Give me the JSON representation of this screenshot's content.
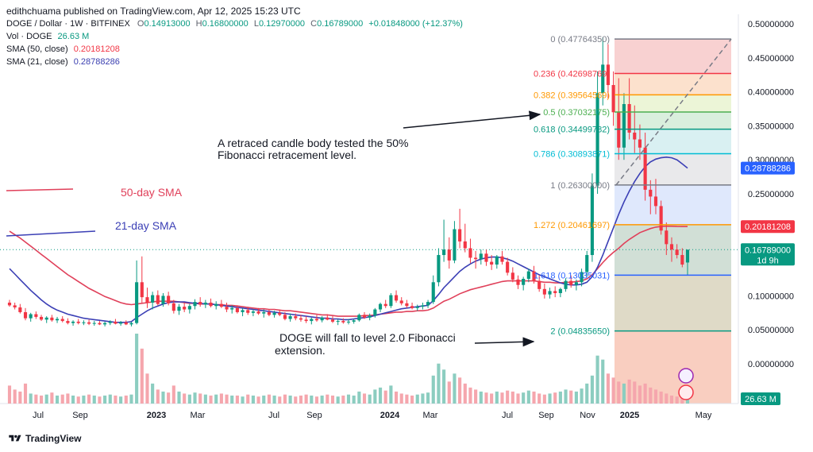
{
  "header": {
    "published": "edithchuama published on TradingView.com, Apr 12, 2025 15:23 UTC",
    "symbol": "DOGE / Dollar · 1W · BITFINEX",
    "ohlc": {
      "o_label": "O",
      "o": "0.14913000",
      "h_label": "H",
      "h": "0.16800000",
      "l_label": "L",
      "l": "0.12970000",
      "c_label": "C",
      "c": "0.16789000",
      "change": "+0.01848000 (+12.37%)"
    },
    "vol_label": "Vol · DOGE",
    "vol": "26.63 M",
    "sma50_label": "SMA (50, close)",
    "sma50": "0.20181208",
    "sma21_label": "SMA (21, close)",
    "sma21": "0.28788286"
  },
  "footer": {
    "brand": "TradingView"
  },
  "chart_data": {
    "type": "candlestick",
    "x_ticks": [
      "Jul",
      "Sep",
      "2023",
      "Mar",
      "Jul",
      "Sep",
      "2024",
      "Mar",
      "Jul",
      "Sep",
      "Nov",
      "2025",
      "May"
    ],
    "y_ticks": [
      "0.50000000",
      "0.45000000",
      "0.40000000",
      "0.35000000",
      "0.30000000",
      "0.25000000",
      "0.10000000",
      "0.05000000",
      "0.00000000"
    ],
    "ylim": [
      -0.05,
      0.5
    ],
    "price_labels": [
      {
        "value": 0.28788286,
        "text": "0.28788286",
        "color": "#2962ff"
      },
      {
        "value": 0.20181208,
        "text": "0.20181208",
        "color": "#f23645"
      },
      {
        "value": 0.16789,
        "text": "0.16789000",
        "sub": "1d 9h",
        "color": "#089981"
      }
    ],
    "volume_label": {
      "text": "26.63 M",
      "color": "#089981"
    },
    "fibonacci": [
      {
        "ratio": "0",
        "price": "0.47764350",
        "value": 0.4776435,
        "color": "#787b86",
        "fill": "#f7c9c9"
      },
      {
        "ratio": "0.236",
        "price": "0.42698769",
        "value": 0.42698769,
        "color": "#f23645",
        "fill": "#fbdcc4"
      },
      {
        "ratio": "0.382",
        "price": "0.39564569",
        "value": 0.39564569,
        "color": "#ff9800",
        "fill": "#e9f3d0"
      },
      {
        "ratio": "0.5",
        "price": "0.37032175",
        "value": 0.37032175,
        "color": "#4caf50",
        "fill": "#d4ecd7"
      },
      {
        "ratio": "0.618",
        "price": "0.34499782",
        "value": 0.34499782,
        "color": "#089981",
        "fill": "#d2edf0"
      },
      {
        "ratio": "0.786",
        "price": "0.30893871",
        "value": 0.30893871,
        "color": "#00bcd4",
        "fill": "#e5e5e7"
      },
      {
        "ratio": "1",
        "price": "0.26300000",
        "value": 0.263,
        "color": "#787b86",
        "fill": "#d9e4fb"
      },
      {
        "ratio": "1.272",
        "price": "0.20461697",
        "value": 0.20461697,
        "color": "#ff9800",
        "fill": "#c9d9cf"
      },
      {
        "ratio": "1.618",
        "price": "0.13035031",
        "value": 0.13035031,
        "color": "#2962ff",
        "fill": "#d9d3bd"
      },
      {
        "ratio": "2",
        "price": "0.04835650",
        "value": 0.0483565,
        "color": "#089981",
        "fill": "#f8c6b5"
      }
    ],
    "annotations": {
      "top_text_line1": "A retraced candle body tested the 50%",
      "top_text_line2": "Fibonacci retracement level.",
      "bottom_text_line1": "DOGE  will fall to level 2.0 Fibonacci",
      "bottom_text_line2": "extension.",
      "sma50_label": "50-day SMA",
      "sma21_label": "21-day SMA"
    },
    "series_colors": {
      "up": "#089981",
      "down": "#f23645",
      "sma50": "#e0405a",
      "sma21": "#3b3fb5"
    },
    "candles": [
      [
        0.09,
        0.094,
        0.084,
        0.086
      ],
      [
        0.086,
        0.09,
        0.08,
        0.083
      ],
      [
        0.083,
        0.088,
        0.074,
        0.076
      ],
      [
        0.076,
        0.082,
        0.064,
        0.067
      ],
      [
        0.067,
        0.075,
        0.062,
        0.073
      ],
      [
        0.073,
        0.077,
        0.066,
        0.069
      ],
      [
        0.069,
        0.072,
        0.063,
        0.065
      ],
      [
        0.065,
        0.07,
        0.06,
        0.068
      ],
      [
        0.068,
        0.072,
        0.062,
        0.064
      ],
      [
        0.064,
        0.069,
        0.06,
        0.066
      ],
      [
        0.066,
        0.07,
        0.061,
        0.063
      ],
      [
        0.063,
        0.067,
        0.058,
        0.06
      ],
      [
        0.06,
        0.064,
        0.056,
        0.062
      ],
      [
        0.062,
        0.066,
        0.058,
        0.06
      ],
      [
        0.06,
        0.064,
        0.057,
        0.061
      ],
      [
        0.061,
        0.065,
        0.057,
        0.059
      ],
      [
        0.059,
        0.063,
        0.056,
        0.06
      ],
      [
        0.06,
        0.063,
        0.057,
        0.058
      ],
      [
        0.058,
        0.062,
        0.055,
        0.06
      ],
      [
        0.06,
        0.064,
        0.057,
        0.062
      ],
      [
        0.062,
        0.066,
        0.058,
        0.059
      ],
      [
        0.059,
        0.063,
        0.056,
        0.061
      ],
      [
        0.061,
        0.064,
        0.057,
        0.058
      ],
      [
        0.058,
        0.062,
        0.055,
        0.06
      ],
      [
        0.06,
        0.152,
        0.058,
        0.12
      ],
      [
        0.12,
        0.158,
        0.09,
        0.098
      ],
      [
        0.098,
        0.112,
        0.082,
        0.09
      ],
      [
        0.09,
        0.106,
        0.08,
        0.101
      ],
      [
        0.101,
        0.108,
        0.086,
        0.088
      ],
      [
        0.088,
        0.104,
        0.084,
        0.1
      ],
      [
        0.1,
        0.106,
        0.086,
        0.089
      ],
      [
        0.089,
        0.094,
        0.074,
        0.078
      ],
      [
        0.078,
        0.088,
        0.072,
        0.084
      ],
      [
        0.084,
        0.09,
        0.076,
        0.08
      ],
      [
        0.08,
        0.088,
        0.074,
        0.085
      ],
      [
        0.085,
        0.095,
        0.08,
        0.091
      ],
      [
        0.091,
        0.098,
        0.084,
        0.087
      ],
      [
        0.087,
        0.094,
        0.082,
        0.09
      ],
      [
        0.09,
        0.096,
        0.083,
        0.085
      ],
      [
        0.085,
        0.092,
        0.08,
        0.088
      ],
      [
        0.088,
        0.094,
        0.082,
        0.084
      ],
      [
        0.084,
        0.09,
        0.076,
        0.08
      ],
      [
        0.08,
        0.086,
        0.074,
        0.082
      ],
      [
        0.082,
        0.086,
        0.074,
        0.076
      ],
      [
        0.076,
        0.082,
        0.07,
        0.079
      ],
      [
        0.079,
        0.084,
        0.072,
        0.075
      ],
      [
        0.075,
        0.08,
        0.07,
        0.077
      ],
      [
        0.077,
        0.082,
        0.072,
        0.074
      ],
      [
        0.074,
        0.08,
        0.068,
        0.076
      ],
      [
        0.076,
        0.08,
        0.07,
        0.072
      ],
      [
        0.072,
        0.078,
        0.068,
        0.075
      ],
      [
        0.075,
        0.08,
        0.07,
        0.072
      ],
      [
        0.072,
        0.076,
        0.064,
        0.066
      ],
      [
        0.066,
        0.074,
        0.062,
        0.07
      ],
      [
        0.07,
        0.074,
        0.064,
        0.067
      ],
      [
        0.067,
        0.072,
        0.062,
        0.065
      ],
      [
        0.065,
        0.07,
        0.06,
        0.063
      ],
      [
        0.063,
        0.068,
        0.058,
        0.066
      ],
      [
        0.066,
        0.072,
        0.062,
        0.064
      ],
      [
        0.064,
        0.07,
        0.061,
        0.068
      ],
      [
        0.068,
        0.073,
        0.064,
        0.065
      ],
      [
        0.065,
        0.07,
        0.06,
        0.062
      ],
      [
        0.062,
        0.066,
        0.057,
        0.063
      ],
      [
        0.063,
        0.067,
        0.059,
        0.061
      ],
      [
        0.061,
        0.066,
        0.058,
        0.062
      ],
      [
        0.062,
        0.066,
        0.059,
        0.064
      ],
      [
        0.064,
        0.074,
        0.062,
        0.072
      ],
      [
        0.072,
        0.076,
        0.066,
        0.068
      ],
      [
        0.068,
        0.074,
        0.064,
        0.071
      ],
      [
        0.071,
        0.082,
        0.068,
        0.08
      ],
      [
        0.08,
        0.09,
        0.076,
        0.088
      ],
      [
        0.088,
        0.094,
        0.082,
        0.085
      ],
      [
        0.085,
        0.104,
        0.082,
        0.101
      ],
      [
        0.101,
        0.108,
        0.09,
        0.093
      ],
      [
        0.093,
        0.098,
        0.086,
        0.089
      ],
      [
        0.089,
        0.094,
        0.082,
        0.085
      ],
      [
        0.085,
        0.09,
        0.08,
        0.082
      ],
      [
        0.082,
        0.087,
        0.078,
        0.084
      ],
      [
        0.084,
        0.09,
        0.08,
        0.086
      ],
      [
        0.086,
        0.094,
        0.082,
        0.091
      ],
      [
        0.091,
        0.13,
        0.088,
        0.12
      ],
      [
        0.12,
        0.17,
        0.114,
        0.16
      ],
      [
        0.16,
        0.212,
        0.15,
        0.168
      ],
      [
        0.168,
        0.186,
        0.14,
        0.152
      ],
      [
        0.152,
        0.21,
        0.148,
        0.198
      ],
      [
        0.198,
        0.228,
        0.17,
        0.18
      ],
      [
        0.18,
        0.206,
        0.164,
        0.17
      ],
      [
        0.17,
        0.184,
        0.148,
        0.156
      ],
      [
        0.156,
        0.166,
        0.14,
        0.154
      ],
      [
        0.154,
        0.168,
        0.146,
        0.162
      ],
      [
        0.162,
        0.168,
        0.144,
        0.15
      ],
      [
        0.15,
        0.16,
        0.138,
        0.146
      ],
      [
        0.146,
        0.16,
        0.14,
        0.158
      ],
      [
        0.158,
        0.166,
        0.146,
        0.15
      ],
      [
        0.15,
        0.156,
        0.13,
        0.134
      ],
      [
        0.134,
        0.142,
        0.12,
        0.124
      ],
      [
        0.124,
        0.13,
        0.11,
        0.116
      ],
      [
        0.116,
        0.128,
        0.108,
        0.125
      ],
      [
        0.125,
        0.14,
        0.12,
        0.136
      ],
      [
        0.136,
        0.144,
        0.118,
        0.122
      ],
      [
        0.122,
        0.13,
        0.106,
        0.11
      ],
      [
        0.11,
        0.118,
        0.096,
        0.102
      ],
      [
        0.102,
        0.112,
        0.096,
        0.107
      ],
      [
        0.107,
        0.114,
        0.098,
        0.104
      ],
      [
        0.104,
        0.112,
        0.098,
        0.11
      ],
      [
        0.11,
        0.126,
        0.106,
        0.122
      ],
      [
        0.122,
        0.13,
        0.112,
        0.116
      ],
      [
        0.116,
        0.124,
        0.108,
        0.12
      ],
      [
        0.12,
        0.14,
        0.114,
        0.135
      ],
      [
        0.135,
        0.166,
        0.128,
        0.16
      ],
      [
        0.16,
        0.28,
        0.15,
        0.262
      ],
      [
        0.262,
        0.43,
        0.25,
        0.398
      ],
      [
        0.398,
        0.48,
        0.38,
        0.44
      ],
      [
        0.44,
        0.47,
        0.39,
        0.41
      ],
      [
        0.41,
        0.43,
        0.35,
        0.37
      ],
      [
        0.37,
        0.42,
        0.3,
        0.318
      ],
      [
        0.318,
        0.398,
        0.3,
        0.382
      ],
      [
        0.382,
        0.42,
        0.33,
        0.34
      ],
      [
        0.34,
        0.38,
        0.31,
        0.33
      ],
      [
        0.33,
        0.352,
        0.3,
        0.318
      ],
      [
        0.318,
        0.34,
        0.24,
        0.256
      ],
      [
        0.256,
        0.27,
        0.22,
        0.246
      ],
      [
        0.246,
        0.272,
        0.22,
        0.232
      ],
      [
        0.232,
        0.24,
        0.19,
        0.196
      ],
      [
        0.196,
        0.208,
        0.16,
        0.176
      ],
      [
        0.176,
        0.186,
        0.15,
        0.168
      ],
      [
        0.168,
        0.176,
        0.155,
        0.16
      ],
      [
        0.16,
        0.17,
        0.142,
        0.146
      ],
      [
        0.149,
        0.168,
        0.1297,
        0.16789
      ]
    ],
    "sma50": [
      0.195,
      0.19,
      0.185,
      0.179,
      0.173,
      0.167,
      0.161,
      0.155,
      0.149,
      0.143,
      0.137,
      0.131,
      0.126,
      0.121,
      0.116,
      0.111,
      0.107,
      0.103,
      0.099,
      0.096,
      0.093,
      0.09,
      0.088,
      0.087,
      0.088,
      0.089,
      0.09,
      0.091,
      0.092,
      0.092,
      0.092,
      0.092,
      0.091,
      0.09,
      0.089,
      0.089,
      0.088,
      0.088,
      0.088,
      0.087,
      0.087,
      0.086,
      0.086,
      0.085,
      0.084,
      0.083,
      0.082,
      0.081,
      0.081,
      0.08,
      0.08,
      0.079,
      0.078,
      0.078,
      0.077,
      0.076,
      0.075,
      0.074,
      0.073,
      0.072,
      0.072,
      0.071,
      0.07,
      0.07,
      0.07,
      0.07,
      0.07,
      0.071,
      0.071,
      0.072,
      0.073,
      0.074,
      0.075,
      0.076,
      0.076,
      0.077,
      0.077,
      0.078,
      0.078,
      0.079,
      0.082,
      0.087,
      0.092,
      0.095,
      0.099,
      0.103,
      0.106,
      0.109,
      0.111,
      0.113,
      0.115,
      0.117,
      0.119,
      0.121,
      0.122,
      0.122,
      0.122,
      0.122,
      0.122,
      0.122,
      0.121,
      0.12,
      0.12,
      0.119,
      0.119,
      0.12,
      0.12,
      0.121,
      0.122,
      0.125,
      0.131,
      0.14,
      0.149,
      0.157,
      0.164,
      0.17,
      0.177,
      0.183,
      0.188,
      0.193,
      0.196,
      0.199,
      0.201,
      0.202,
      0.2025,
      0.2023,
      0.202,
      0.2019,
      0.20181208
    ],
    "sma21": [
      0.14,
      0.132,
      0.124,
      0.116,
      0.108,
      0.101,
      0.094,
      0.088,
      0.083,
      0.079,
      0.076,
      0.073,
      0.071,
      0.069,
      0.067,
      0.066,
      0.065,
      0.064,
      0.063,
      0.062,
      0.061,
      0.061,
      0.061,
      0.062,
      0.068,
      0.073,
      0.078,
      0.082,
      0.085,
      0.088,
      0.09,
      0.091,
      0.091,
      0.091,
      0.09,
      0.089,
      0.089,
      0.088,
      0.088,
      0.087,
      0.086,
      0.085,
      0.084,
      0.083,
      0.082,
      0.081,
      0.08,
      0.079,
      0.078,
      0.077,
      0.076,
      0.075,
      0.074,
      0.073,
      0.072,
      0.071,
      0.07,
      0.069,
      0.068,
      0.067,
      0.067,
      0.066,
      0.066,
      0.065,
      0.065,
      0.066,
      0.067,
      0.068,
      0.069,
      0.071,
      0.073,
      0.075,
      0.077,
      0.079,
      0.081,
      0.082,
      0.083,
      0.084,
      0.085,
      0.086,
      0.093,
      0.102,
      0.112,
      0.12,
      0.128,
      0.136,
      0.142,
      0.147,
      0.151,
      0.154,
      0.156,
      0.157,
      0.157,
      0.156,
      0.154,
      0.151,
      0.147,
      0.143,
      0.139,
      0.135,
      0.131,
      0.128,
      0.125,
      0.122,
      0.119,
      0.117,
      0.116,
      0.116,
      0.117,
      0.12,
      0.128,
      0.142,
      0.16,
      0.18,
      0.2,
      0.22,
      0.238,
      0.254,
      0.268,
      0.28,
      0.29,
      0.297,
      0.301,
      0.303,
      0.304,
      0.303,
      0.3,
      0.294,
      0.28788286
    ],
    "volume": [
      18,
      14,
      12,
      20,
      10,
      9,
      8,
      9,
      11,
      8,
      9,
      10,
      8,
      7,
      8,
      9,
      8,
      7,
      8,
      9,
      8,
      7,
      8,
      9,
      70,
      55,
      30,
      20,
      14,
      12,
      11,
      18,
      12,
      10,
      9,
      11,
      10,
      9,
      8,
      9,
      10,
      9,
      8,
      8,
      7,
      9,
      8,
      7,
      8,
      9,
      8,
      7,
      9,
      8,
      7,
      8,
      9,
      8,
      7,
      8,
      9,
      8,
      7,
      8,
      9,
      8,
      12,
      10,
      9,
      14,
      16,
      13,
      18,
      12,
      10,
      9,
      8,
      9,
      10,
      11,
      28,
      40,
      34,
      22,
      30,
      26,
      20,
      16,
      14,
      12,
      11,
      10,
      12,
      11,
      13,
      12,
      10,
      11,
      13,
      12,
      10,
      9,
      10,
      11,
      12,
      14,
      13,
      12,
      15,
      20,
      28,
      48,
      44,
      30,
      26,
      22,
      20,
      24,
      22,
      18,
      20,
      16,
      14,
      12,
      10,
      8,
      7,
      6,
      5
    ]
  }
}
